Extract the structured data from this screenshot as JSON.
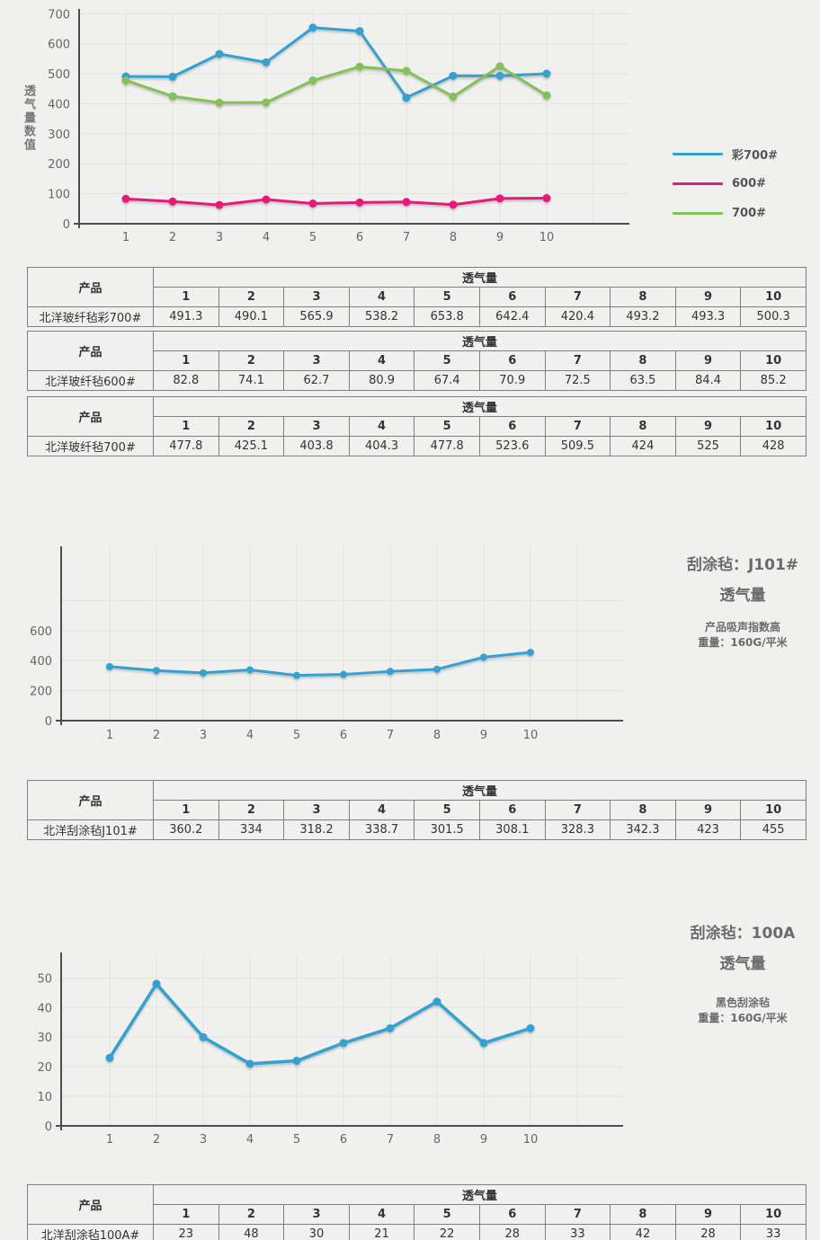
{
  "page": {
    "background": "#f0f0ee"
  },
  "colors": {
    "blue": "#35a1d0",
    "pink": "#e8197d",
    "green": "#84c158",
    "axis": "#4d4d4d",
    "grid": "#e2e2e0",
    "tick_text": "#666666",
    "table_border": "#7e7e7e",
    "table_text": "#333333",
    "title_gray": "#6b6b6b"
  },
  "chart_data": [
    {
      "type": "line",
      "ylabel": "透气量数值",
      "x": [
        1,
        2,
        3,
        4,
        5,
        6,
        7,
        8,
        9,
        10
      ],
      "ylim": [
        0,
        710
      ],
      "yticks": [
        0,
        100,
        200,
        300,
        400,
        500,
        600,
        700
      ],
      "grid_y": [
        100,
        200,
        300,
        400,
        500,
        600,
        700
      ],
      "grid": true,
      "legend_position": "right",
      "series": [
        {
          "name": "彩700#",
          "color": "#35a1d0",
          "values": [
            491.3,
            490.1,
            565.9,
            538.2,
            653.8,
            642.4,
            420.4,
            493.2,
            493.3,
            500.3
          ]
        },
        {
          "name": "600#",
          "color": "#e8197d",
          "values": [
            82.8,
            74.1,
            62.7,
            80.9,
            67.4,
            70.9,
            72.5,
            63.5,
            84.4,
            85.2
          ]
        },
        {
          "name": "700#",
          "color": "#84c158",
          "values": [
            477.8,
            425.1,
            403.8,
            404.3,
            477.8,
            523.6,
            509.5,
            424,
            525,
            428
          ]
        }
      ]
    },
    {
      "type": "line",
      "title": "刮涂毡：J101#",
      "title2": "透气量",
      "note1": "产品吸声指数高",
      "note2": "重量：160G/平米",
      "x": [
        1,
        2,
        3,
        4,
        5,
        6,
        7,
        8,
        9,
        10
      ],
      "ylim": [
        0,
        1150
      ],
      "yticks": [
        0,
        200,
        400,
        600
      ],
      "grid_y": [
        200,
        400,
        600,
        800
      ],
      "grid": true,
      "series": [
        {
          "name": "北洋刮涂毡J101#",
          "color": "#35a1d0",
          "values": [
            360.2,
            334,
            318.2,
            338.7,
            301.5,
            308.1,
            328.3,
            342.3,
            423,
            455
          ]
        }
      ]
    },
    {
      "type": "line",
      "title": "刮涂毡：100A",
      "title2": "透气量",
      "note1": "黑色刮涂毡",
      "note2": "重量：160G/平米",
      "x": [
        1,
        2,
        3,
        4,
        5,
        6,
        7,
        8,
        9,
        10
      ],
      "ylim": [
        0,
        58
      ],
      "yticks": [
        0,
        10,
        20,
        30,
        40,
        50
      ],
      "grid_y": [
        10,
        20,
        30,
        40,
        50
      ],
      "grid": true,
      "series": [
        {
          "name": "北洋刮涂毡100A#",
          "color": "#35a1d0",
          "values": [
            23,
            48,
            30,
            21,
            22,
            28,
            33,
            42,
            28,
            33
          ]
        }
      ]
    }
  ],
  "tables": [
    {
      "product_header": "产品",
      "group_header": "透气量",
      "columns": [
        "1",
        "2",
        "3",
        "4",
        "5",
        "6",
        "7",
        "8",
        "9",
        "10"
      ],
      "rows": [
        {
          "product": "北洋玻纤毡彩700#",
          "values": [
            "491.3",
            "490.1",
            "565.9",
            "538.2",
            "653.8",
            "642.4",
            "420.4",
            "493.2",
            "493.3",
            "500.3"
          ]
        }
      ]
    },
    {
      "product_header": "产品",
      "group_header": "透气量",
      "columns": [
        "1",
        "2",
        "3",
        "4",
        "5",
        "6",
        "7",
        "8",
        "9",
        "10"
      ],
      "rows": [
        {
          "product": "北洋玻纤毡600#",
          "values": [
            "82.8",
            "74.1",
            "62.7",
            "80.9",
            "67.4",
            "70.9",
            "72.5",
            "63.5",
            "84.4",
            "85.2"
          ]
        }
      ]
    },
    {
      "product_header": "产品",
      "group_header": "透气量",
      "columns": [
        "1",
        "2",
        "3",
        "4",
        "5",
        "6",
        "7",
        "8",
        "9",
        "10"
      ],
      "rows": [
        {
          "product": "北洋玻纤毡700#",
          "values": [
            "477.8",
            "425.1",
            "403.8",
            "404.3",
            "477.8",
            "523.6",
            "509.5",
            "424",
            "525",
            "428"
          ]
        }
      ]
    },
    {
      "product_header": "产品",
      "group_header": "透气量",
      "columns": [
        "1",
        "2",
        "3",
        "4",
        "5",
        "6",
        "7",
        "8",
        "9",
        "10"
      ],
      "rows": [
        {
          "product": "北洋刮涂毡J101#",
          "values": [
            "360.2",
            "334",
            "318.2",
            "338.7",
            "301.5",
            "308.1",
            "328.3",
            "342.3",
            "423",
            "455"
          ]
        }
      ]
    },
    {
      "product_header": "产品",
      "group_header": "透气量",
      "columns": [
        "1",
        "2",
        "3",
        "4",
        "5",
        "6",
        "7",
        "8",
        "9",
        "10"
      ],
      "rows": [
        {
          "product": "北洋刮涂毡100A#",
          "values": [
            "23",
            "48",
            "30",
            "21",
            "22",
            "28",
            "33",
            "42",
            "28",
            "33"
          ]
        }
      ]
    }
  ]
}
